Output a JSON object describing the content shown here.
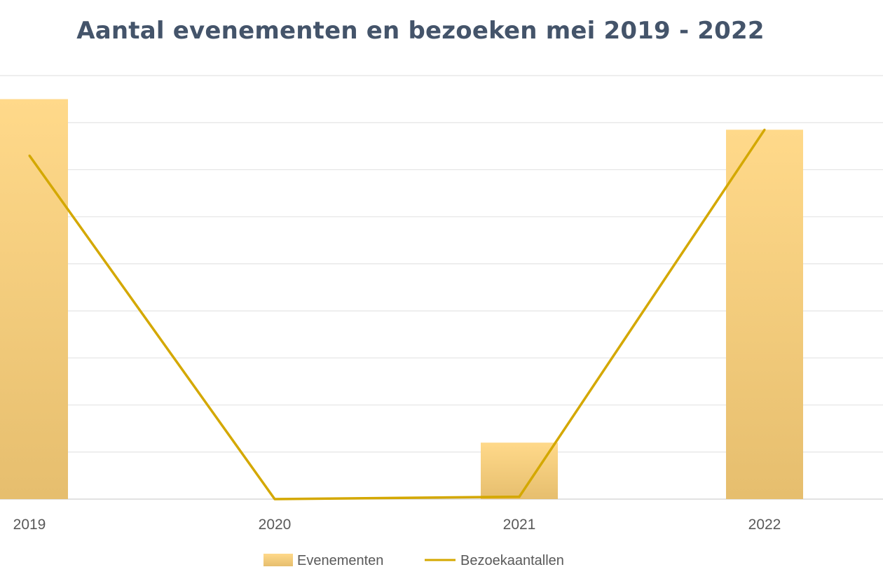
{
  "chart_data": {
    "type": "bar",
    "title": "Aantal evenementen en bezoeken mei 2019 - 2022",
    "categories": [
      "2019",
      "2020",
      "2021",
      "2022"
    ],
    "series": [
      {
        "name": "Evenementen",
        "type": "bar",
        "values": [
          85,
          0,
          12,
          78.5
        ]
      },
      {
        "name": "Bezoekaantallen",
        "type": "line",
        "values": [
          73,
          0,
          0.5,
          78.5
        ]
      }
    ],
    "ylim": [
      0,
      90
    ],
    "grid": true,
    "legend": "bottom",
    "colors": {
      "bar_top": "#FFD98A",
      "bar_bottom": "#E6BE6E",
      "line": "#D4A800",
      "grid": "#E4E4E4",
      "title": "#44546A"
    }
  }
}
